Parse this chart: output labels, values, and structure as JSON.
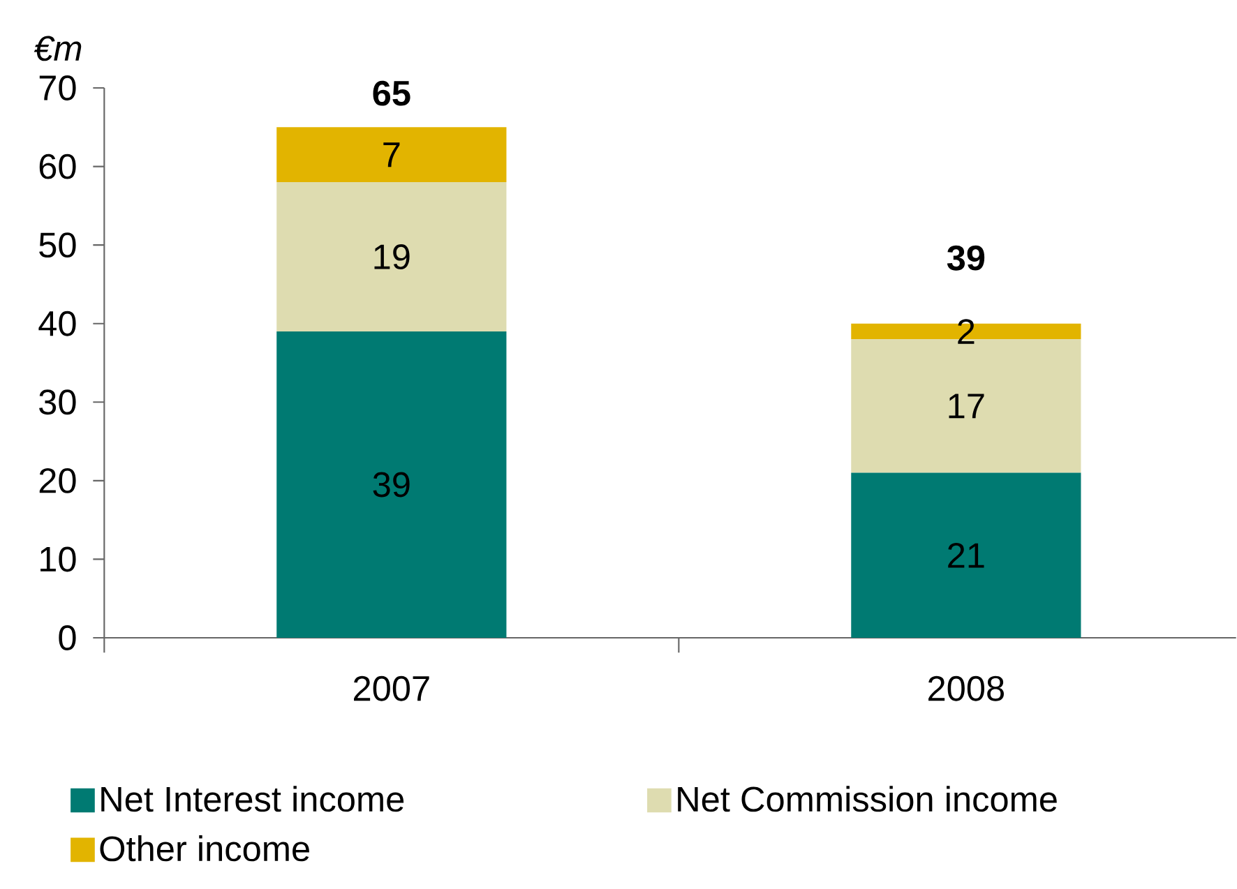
{
  "chart_data": {
    "type": "bar",
    "stacked": true,
    "ylabel": "€m",
    "categories": [
      "2007",
      "2008"
    ],
    "series": [
      {
        "name": "Net Interest income",
        "color": "#007a72",
        "values": [
          39,
          21
        ]
      },
      {
        "name": "Net Commission income",
        "color": "#dedcb0",
        "values": [
          19,
          17
        ]
      },
      {
        "name": "Other income",
        "color": "#e2b400",
        "values": [
          7,
          2
        ]
      }
    ],
    "totals": [
      "65",
      "39"
    ],
    "data_labels": true,
    "ylim": [
      0,
      70
    ],
    "yticks": [
      0,
      10,
      20,
      30,
      40,
      50,
      60,
      70
    ],
    "grid": false,
    "legend": "bottom"
  }
}
